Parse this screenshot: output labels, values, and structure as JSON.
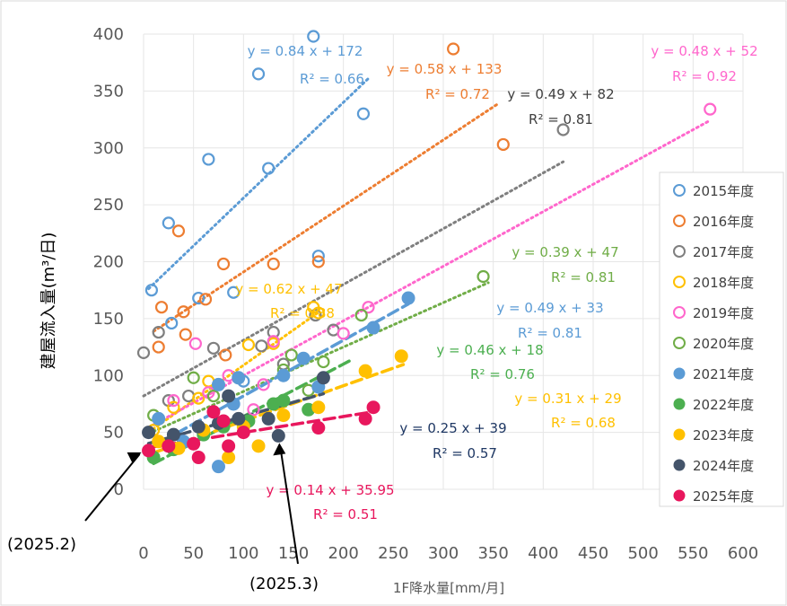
{
  "chart_data": {
    "type": "scatter",
    "title": "",
    "xlabel": "1F降水量[mm/月]",
    "ylabel": "建屋流入量(m³/日)",
    "xlim": [
      0,
      600
    ],
    "ylim": [
      0,
      400
    ],
    "x_ticks": [
      "0",
      "50",
      "100",
      "150",
      "200",
      "250",
      "300",
      "350",
      "400",
      "450",
      "500",
      "550",
      "600"
    ],
    "y_ticks": [
      "0",
      "50",
      "100",
      "150",
      "200",
      "250",
      "300",
      "350",
      "400"
    ],
    "grid": true,
    "legend_position": "right",
    "series": [
      {
        "name": "2015年度",
        "color": "#5B9BD5",
        "marker": "open",
        "trend": {
          "slope": 0.84,
          "intercept": 172,
          "x_range": [
            5,
            225
          ],
          "style": "dotted",
          "eq": "y = 0.84 x + 172",
          "r2": "R² = 0.66"
        },
        "points": [
          [
            8,
            175
          ],
          [
            25,
            234
          ],
          [
            28,
            146
          ],
          [
            55,
            168
          ],
          [
            65,
            290
          ],
          [
            90,
            173
          ],
          [
            100,
            95
          ],
          [
            115,
            365
          ],
          [
            125,
            282
          ],
          [
            170,
            398
          ],
          [
            175,
            205
          ],
          [
            220,
            330
          ]
        ]
      },
      {
        "name": "2016年度",
        "color": "#ED7D31",
        "marker": "open",
        "trend": {
          "slope": 0.58,
          "intercept": 133,
          "x_range": [
            10,
            355
          ],
          "style": "dotted",
          "eq": "y = 0.58 x + 133",
          "r2": "R² = 0.72"
        },
        "points": [
          [
            15,
            125
          ],
          [
            18,
            160
          ],
          [
            35,
            227
          ],
          [
            40,
            156
          ],
          [
            42,
            136
          ],
          [
            62,
            167
          ],
          [
            80,
            198
          ],
          [
            82,
            118
          ],
          [
            130,
            198
          ],
          [
            175,
            200
          ],
          [
            310,
            387
          ],
          [
            360,
            303
          ]
        ]
      },
      {
        "name": "2017年度",
        "color": "#7F7F7F",
        "marker": "open",
        "trend": {
          "slope": 0.49,
          "intercept": 82,
          "x_range": [
            0,
            420
          ],
          "style": "dotted",
          "eq": "y = 0.49 x + 82",
          "r2": "R² = 0.81"
        },
        "points": [
          [
            0,
            120
          ],
          [
            15,
            138
          ],
          [
            25,
            78
          ],
          [
            45,
            82
          ],
          [
            70,
            124
          ],
          [
            118,
            126
          ],
          [
            130,
            138
          ],
          [
            140,
            110
          ],
          [
            172,
            153
          ],
          [
            190,
            140
          ],
          [
            420,
            316
          ]
        ]
      },
      {
        "name": "2018年度",
        "color": "#FFC000",
        "marker": "open",
        "trend": {
          "slope": 0.62,
          "intercept": 47,
          "x_range": [
            5,
            175
          ],
          "style": "dotted",
          "eq": "y = 0.62 x + 47",
          "r2": "R² = 0.88"
        },
        "points": [
          [
            10,
            52
          ],
          [
            30,
            72
          ],
          [
            55,
            80
          ],
          [
            65,
            95
          ],
          [
            105,
            127
          ],
          [
            130,
            128
          ],
          [
            170,
            160
          ],
          [
            175,
            155
          ]
        ]
      },
      {
        "name": "2019年度",
        "color": "#FF66CC",
        "marker": "open",
        "trend": {
          "slope": 0.48,
          "intercept": 52,
          "x_range": [
            5,
            565
          ],
          "style": "dotted",
          "eq": "y = 0.48 x + 52",
          "r2": "R² = 0.92"
        },
        "points": [
          [
            30,
            78
          ],
          [
            52,
            128
          ],
          [
            65,
            85
          ],
          [
            85,
            100
          ],
          [
            110,
            70
          ],
          [
            120,
            92
          ],
          [
            130,
            130
          ],
          [
            200,
            137
          ],
          [
            225,
            160
          ],
          [
            567,
            334
          ]
        ]
      },
      {
        "name": "2020年度",
        "color": "#70AD47",
        "marker": "open",
        "trend": {
          "slope": 0.39,
          "intercept": 47,
          "x_range": [
            5,
            345
          ],
          "style": "dotted",
          "eq": "y = 0.39 x + 47",
          "r2": "R² = 0.81"
        },
        "points": [
          [
            10,
            65
          ],
          [
            50,
            98
          ],
          [
            70,
            82
          ],
          [
            140,
            105
          ],
          [
            148,
            118
          ],
          [
            165,
            87
          ],
          [
            180,
            112
          ],
          [
            218,
            153
          ],
          [
            340,
            187
          ]
        ]
      },
      {
        "name": "2021年度",
        "color": "#5B9BD5",
        "marker": "filled",
        "trend": {
          "slope": 0.49,
          "intercept": 33,
          "x_range": [
            5,
            265
          ],
          "style": "dashed",
          "eq": "y = 0.49 x + 33",
          "r2": "R² = 0.81"
        },
        "points": [
          [
            15,
            62
          ],
          [
            40,
            42
          ],
          [
            75,
            20
          ],
          [
            75,
            92
          ],
          [
            90,
            75
          ],
          [
            95,
            98
          ],
          [
            140,
            100
          ],
          [
            160,
            115
          ],
          [
            175,
            90
          ],
          [
            230,
            142
          ],
          [
            265,
            168
          ]
        ]
      },
      {
        "name": "2022年度",
        "color": "#4CAF50",
        "marker": "filled",
        "trend": {
          "slope": 0.46,
          "intercept": 18,
          "x_range": [
            10,
            210
          ],
          "style": "dashed",
          "eq": "y = 0.46 x + 18",
          "r2": "R² = 0.76"
        },
        "points": [
          [
            10,
            28
          ],
          [
            30,
            35
          ],
          [
            60,
            48
          ],
          [
            80,
            55
          ],
          [
            105,
            60
          ],
          [
            130,
            75
          ],
          [
            140,
            78
          ],
          [
            165,
            70
          ]
        ]
      },
      {
        "name": "2023年度",
        "color": "#FFC000",
        "marker": "filled",
        "trend": {
          "slope": 0.31,
          "intercept": 29,
          "x_range": [
            10,
            260
          ],
          "style": "dashed",
          "eq": "y = 0.31 x + 29",
          "r2": "R² = 0.68"
        },
        "points": [
          [
            15,
            42
          ],
          [
            35,
            36
          ],
          [
            60,
            52
          ],
          [
            85,
            28
          ],
          [
            100,
            55
          ],
          [
            115,
            38
          ],
          [
            140,
            65
          ],
          [
            175,
            72
          ],
          [
            222,
            104
          ],
          [
            258,
            117
          ]
        ]
      },
      {
        "name": "2024年度",
        "color": "#44546A",
        "marker": "filled",
        "trend": {
          "slope": 0.25,
          "intercept": 39,
          "x_range": [
            5,
            180
          ],
          "style": "dashed",
          "eq": "y = 0.25 x + 39",
          "r2": "R² = 0.57"
        },
        "points": [
          [
            5,
            50
          ],
          [
            30,
            48
          ],
          [
            55,
            55
          ],
          [
            75,
            58
          ],
          [
            85,
            82
          ],
          [
            95,
            62
          ],
          [
            125,
            62
          ],
          [
            135,
            47
          ],
          [
            180,
            98
          ]
        ]
      },
      {
        "name": "2025年度",
        "color": "#E8175D",
        "marker": "filled",
        "trend": {
          "slope": 0.14,
          "intercept": 35.95,
          "x_range": [
            5,
            225
          ],
          "style": "dashed",
          "eq": "y = 0.14 x + 35.95",
          "r2": "R² = 0.51"
        },
        "points": [
          [
            5,
            34
          ],
          [
            25,
            38
          ],
          [
            50,
            40
          ],
          [
            55,
            28
          ],
          [
            70,
            68
          ],
          [
            80,
            60
          ],
          [
            85,
            38
          ],
          [
            100,
            50
          ],
          [
            175,
            54
          ],
          [
            222,
            62
          ],
          [
            230,
            72
          ]
        ]
      }
    ],
    "annotations": [
      {
        "text": "(2025.2)",
        "arrow_to": [
          5,
          34
        ]
      },
      {
        "text": "(2025.3)",
        "arrow_to": [
          135,
          47
        ]
      }
    ]
  }
}
